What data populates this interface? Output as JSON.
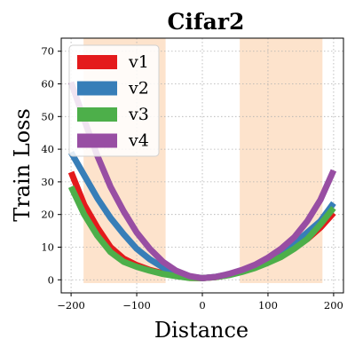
{
  "chart_data": {
    "type": "line",
    "title": "Cifar2",
    "xlabel": "Distance",
    "ylabel": "Train Loss",
    "xlim": [
      -215,
      215
    ],
    "ylim": [
      -4,
      74
    ],
    "xticks": [
      -200,
      -100,
      0,
      100,
      200
    ],
    "yticks": [
      0,
      10,
      20,
      30,
      40,
      50,
      60,
      70
    ],
    "grid": true,
    "legend_position": "top-left",
    "shaded_regions": [
      {
        "x0": -181,
        "x1": -56,
        "color": "#fde3cc"
      },
      {
        "x0": 57,
        "x1": 183,
        "color": "#fde3cc"
      }
    ],
    "x": [
      -200,
      -180,
      -160,
      -140,
      -120,
      -100,
      -80,
      -60,
      -40,
      -20,
      0,
      20,
      40,
      60,
      80,
      100,
      120,
      140,
      160,
      180,
      200
    ],
    "series": [
      {
        "name": "v1",
        "color": "#e41a1c",
        "values": [
          33,
          23,
          16,
          10,
          6.5,
          4.5,
          3,
          2,
          1.3,
          0.6,
          0.5,
          0.8,
          1.5,
          2.5,
          3.8,
          5.5,
          7.5,
          10,
          12.5,
          16,
          20.5
        ]
      },
      {
        "name": "v2",
        "color": "#377eb8",
        "values": [
          39,
          32,
          25,
          19,
          14,
          9.5,
          6.3,
          3.8,
          2,
          1,
          0.5,
          0.9,
          1.6,
          2.5,
          4,
          5.8,
          8,
          11,
          14.5,
          18,
          23.5
        ]
      },
      {
        "name": "v3",
        "color": "#4daf4a",
        "values": [
          28.5,
          20,
          13.5,
          8.5,
          5.5,
          4,
          2.8,
          1.8,
          1.1,
          0.6,
          0.5,
          0.8,
          1.4,
          2.4,
          3.6,
          5.2,
          7,
          9.5,
          12.5,
          17,
          22
        ]
      },
      {
        "name": "v4",
        "color": "#984ea3",
        "values": [
          60.5,
          49,
          38,
          28.5,
          21,
          14.5,
          9.5,
          5.5,
          2.8,
          1.2,
          0.5,
          0.9,
          1.8,
          3,
          4.6,
          6.8,
          9.5,
          13,
          18,
          24.5,
          33.5
        ]
      }
    ]
  }
}
